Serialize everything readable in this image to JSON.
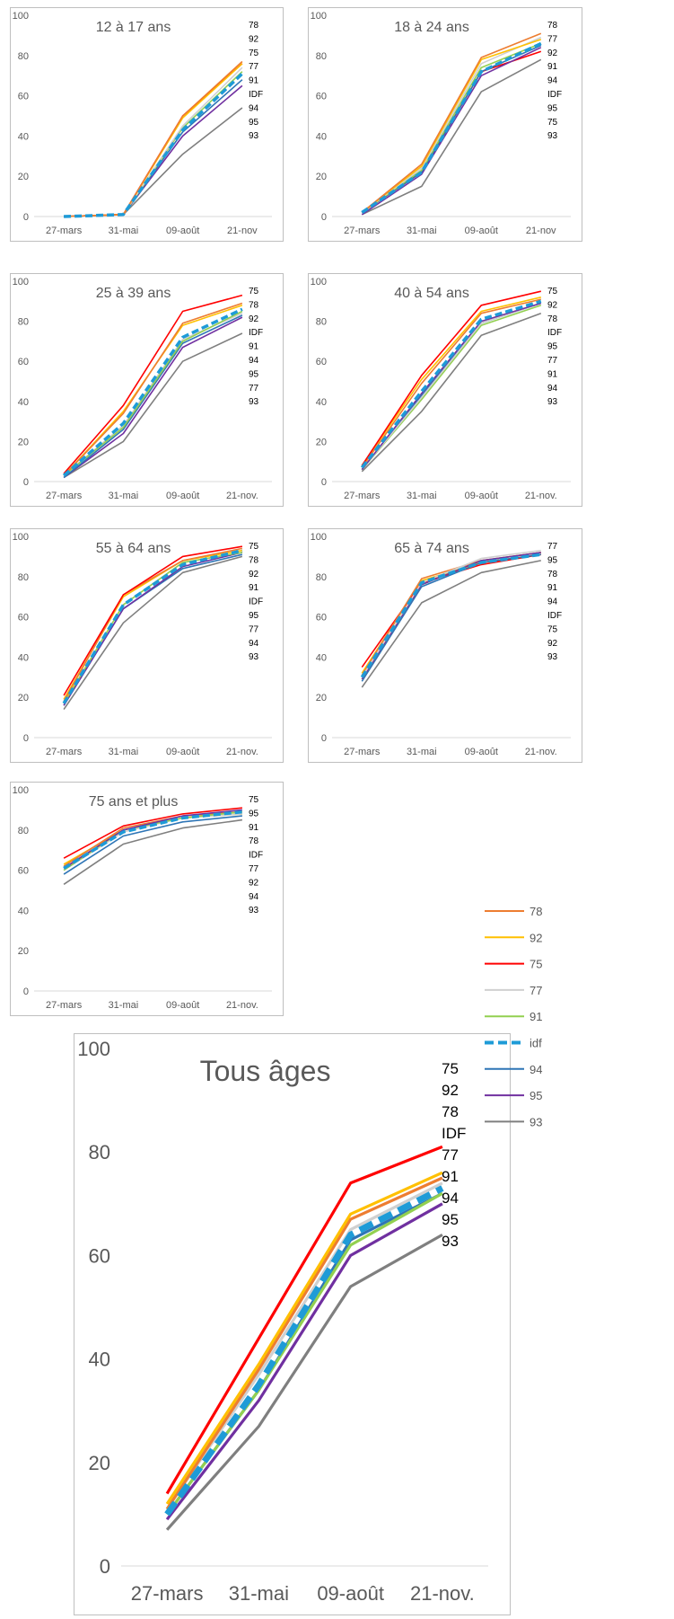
{
  "colors": {
    "78": "#ED7D31",
    "92": "#FFC000",
    "75": "#FF0000",
    "77": "#D0D0D0",
    "91": "#92D050",
    "idf": "#1E9BD7",
    "94": "#2E75B6",
    "95": "#7030A0",
    "93": "#7F7F7F"
  },
  "legend": {
    "items": [
      {
        "key": "78",
        "label": "78"
      },
      {
        "key": "92",
        "label": "92"
      },
      {
        "key": "75",
        "label": "75"
      },
      {
        "key": "77",
        "label": "77"
      },
      {
        "key": "91",
        "label": "91"
      },
      {
        "key": "idf",
        "label": "idf"
      },
      {
        "key": "94",
        "label": "94"
      },
      {
        "key": "95",
        "label": "95"
      },
      {
        "key": "93",
        "label": "93"
      }
    ]
  },
  "chart_data": [
    {
      "type": "line",
      "title": "12 à 17 ans",
      "categories": [
        "27-mars",
        "31-mai",
        "09-août",
        "21-nov"
      ],
      "ylim": [
        0,
        100
      ],
      "yticks": [
        0,
        20,
        40,
        60,
        80,
        100
      ],
      "grid": false,
      "order_labels": [
        "78",
        "92",
        "75",
        "77",
        "91",
        "IDF",
        "94",
        "95",
        "93"
      ],
      "series": [
        {
          "key": "78",
          "values": [
            0,
            1,
            50,
            77
          ]
        },
        {
          "key": "92",
          "values": [
            0,
            1,
            49,
            76
          ]
        },
        {
          "key": "75",
          "values": [
            0,
            1,
            50,
            76
          ]
        },
        {
          "key": "77",
          "values": [
            0,
            1,
            45,
            74
          ]
        },
        {
          "key": "91",
          "values": [
            0,
            1,
            44,
            72
          ]
        },
        {
          "key": "idf",
          "values": [
            0,
            1,
            43,
            71
          ]
        },
        {
          "key": "94",
          "values": [
            0,
            1,
            42,
            68
          ]
        },
        {
          "key": "95",
          "values": [
            0,
            1,
            40,
            65
          ]
        },
        {
          "key": "93",
          "values": [
            0,
            1,
            31,
            54
          ]
        }
      ]
    },
    {
      "type": "line",
      "title": "18 à 24 ans",
      "categories": [
        "27-mars",
        "31-mai",
        "09-août",
        "21-nov"
      ],
      "ylim": [
        0,
        100
      ],
      "yticks": [
        0,
        20,
        40,
        60,
        80,
        100
      ],
      "grid": false,
      "order_labels": [
        "78",
        "77",
        "92",
        "91",
        "94",
        "IDF",
        "95",
        "75",
        "93"
      ],
      "series": [
        {
          "key": "78",
          "values": [
            2,
            26,
            79,
            91
          ]
        },
        {
          "key": "92",
          "values": [
            2,
            25,
            78,
            88
          ]
        },
        {
          "key": "77",
          "values": [
            2,
            24,
            76,
            89
          ]
        },
        {
          "key": "91",
          "values": [
            2,
            23,
            74,
            86
          ]
        },
        {
          "key": "94",
          "values": [
            2,
            22,
            72,
            85
          ]
        },
        {
          "key": "idf",
          "values": [
            2,
            22,
            72,
            86
          ]
        },
        {
          "key": "95",
          "values": [
            1,
            21,
            70,
            84
          ]
        },
        {
          "key": "75",
          "values": [
            2,
            22,
            72,
            82
          ]
        },
        {
          "key": "93",
          "values": [
            1,
            15,
            62,
            78
          ]
        }
      ]
    },
    {
      "type": "line",
      "title": "25 à 39 ans",
      "categories": [
        "27-mars",
        "31-mai",
        "09-août",
        "21-nov."
      ],
      "ylim": [
        0,
        100
      ],
      "yticks": [
        0,
        20,
        40,
        60,
        80,
        100
      ],
      "grid": false,
      "order_labels": [
        "75",
        "78",
        "92",
        "IDF",
        "91",
        "94",
        "95",
        "77",
        "93"
      ],
      "series": [
        {
          "key": "75",
          "values": [
            4,
            38,
            85,
            93
          ]
        },
        {
          "key": "78",
          "values": [
            3,
            34,
            79,
            89
          ]
        },
        {
          "key": "92",
          "values": [
            3,
            35,
            78,
            88
          ]
        },
        {
          "key": "idf",
          "values": [
            3,
            29,
            72,
            86
          ]
        },
        {
          "key": "91",
          "values": [
            3,
            27,
            70,
            85
          ]
        },
        {
          "key": "94",
          "values": [
            2,
            26,
            69,
            83
          ]
        },
        {
          "key": "95",
          "values": [
            2,
            24,
            67,
            82
          ]
        },
        {
          "key": "77",
          "values": [
            3,
            28,
            71,
            84
          ]
        },
        {
          "key": "93",
          "values": [
            2,
            20,
            60,
            74
          ]
        }
      ]
    },
    {
      "type": "line",
      "title": "40 à 54 ans",
      "categories": [
        "27-mars",
        "31-mai",
        "09-août",
        "21-nov."
      ],
      "ylim": [
        0,
        100
      ],
      "yticks": [
        0,
        20,
        40,
        60,
        80,
        100
      ],
      "grid": false,
      "order_labels": [
        "75",
        "92",
        "78",
        "IDF",
        "95",
        "77",
        "91",
        "94",
        "93"
      ],
      "series": [
        {
          "key": "75",
          "values": [
            8,
            53,
            88,
            95
          ]
        },
        {
          "key": "92",
          "values": [
            8,
            51,
            85,
            92
          ]
        },
        {
          "key": "78",
          "values": [
            7,
            49,
            84,
            91
          ]
        },
        {
          "key": "idf",
          "values": [
            7,
            45,
            81,
            90
          ]
        },
        {
          "key": "95",
          "values": [
            6,
            44,
            80,
            89
          ]
        },
        {
          "key": "77",
          "values": [
            6,
            42,
            79,
            89
          ]
        },
        {
          "key": "91",
          "values": [
            6,
            41,
            78,
            88
          ]
        },
        {
          "key": "94",
          "values": [
            6,
            43,
            79,
            89
          ]
        },
        {
          "key": "93",
          "values": [
            5,
            35,
            73,
            84
          ]
        }
      ]
    },
    {
      "type": "line",
      "title": "55 à 64 ans",
      "categories": [
        "27-mars",
        "31-mai",
        "09-août",
        "21-nov."
      ],
      "ylim": [
        0,
        100
      ],
      "yticks": [
        0,
        20,
        40,
        60,
        80,
        100
      ],
      "grid": false,
      "order_labels": [
        "75",
        "78",
        "92",
        "91",
        "IDF",
        "95",
        "77",
        "94",
        "93"
      ],
      "series": [
        {
          "key": "75",
          "values": [
            21,
            71,
            90,
            95
          ]
        },
        {
          "key": "78",
          "values": [
            18,
            71,
            88,
            94
          ]
        },
        {
          "key": "92",
          "values": [
            19,
            70,
            88,
            93
          ]
        },
        {
          "key": "91",
          "values": [
            17,
            66,
            87,
            92
          ]
        },
        {
          "key": "idf",
          "values": [
            17,
            66,
            86,
            93
          ]
        },
        {
          "key": "95",
          "values": [
            16,
            64,
            85,
            92
          ]
        },
        {
          "key": "77",
          "values": [
            17,
            66,
            87,
            92
          ]
        },
        {
          "key": "94",
          "values": [
            16,
            64,
            84,
            91
          ]
        },
        {
          "key": "93",
          "values": [
            14,
            57,
            82,
            90
          ]
        }
      ]
    },
    {
      "type": "line",
      "title": "65 à 74 ans",
      "categories": [
        "27-mars",
        "31-mai",
        "09-août",
        "21-nov."
      ],
      "ylim": [
        0,
        100
      ],
      "yticks": [
        0,
        20,
        40,
        60,
        80,
        100
      ],
      "grid": false,
      "order_labels": [
        "77",
        "95",
        "78",
        "91",
        "94",
        "IDF",
        "75",
        "92",
        "93"
      ],
      "series": [
        {
          "key": "77",
          "values": [
            30,
            77,
            89,
            93
          ]
        },
        {
          "key": "95",
          "values": [
            29,
            76,
            88,
            92
          ]
        },
        {
          "key": "78",
          "values": [
            31,
            79,
            88,
            92
          ]
        },
        {
          "key": "91",
          "values": [
            29,
            76,
            88,
            92
          ]
        },
        {
          "key": "94",
          "values": [
            28,
            75,
            87,
            91
          ]
        },
        {
          "key": "idf",
          "values": [
            30,
            77,
            87,
            91
          ]
        },
        {
          "key": "75",
          "values": [
            35,
            77,
            86,
            91
          ]
        },
        {
          "key": "92",
          "values": [
            32,
            78,
            87,
            91
          ]
        },
        {
          "key": "93",
          "values": [
            25,
            67,
            82,
            88
          ]
        }
      ]
    },
    {
      "type": "line",
      "title": "75 ans et plus",
      "categories": [
        "27-mars",
        "31-mai",
        "09-août",
        "21-nov."
      ],
      "ylim": [
        0,
        100
      ],
      "yticks": [
        0,
        20,
        40,
        60,
        80,
        100
      ],
      "grid": false,
      "order_labels": [
        "75",
        "95",
        "91",
        "78",
        "IDF",
        "77",
        "92",
        "94",
        "93"
      ],
      "series": [
        {
          "key": "75",
          "values": [
            66,
            82,
            88,
            91
          ]
        },
        {
          "key": "95",
          "values": [
            61,
            80,
            87,
            90
          ]
        },
        {
          "key": "91",
          "values": [
            60,
            80,
            86,
            89
          ]
        },
        {
          "key": "78",
          "values": [
            62,
            81,
            87,
            89
          ]
        },
        {
          "key": "idf",
          "values": [
            61,
            79,
            86,
            89
          ]
        },
        {
          "key": "77",
          "values": [
            60,
            79,
            86,
            88
          ]
        },
        {
          "key": "92",
          "values": [
            63,
            80,
            86,
            88
          ]
        },
        {
          "key": "94",
          "values": [
            58,
            77,
            84,
            87
          ]
        },
        {
          "key": "93",
          "values": [
            53,
            73,
            81,
            85
          ]
        }
      ]
    },
    {
      "type": "line",
      "title": "Tous âges",
      "categories": [
        "27-mars",
        "31-mai",
        "09-août",
        "21-nov."
      ],
      "ylim": [
        0,
        100
      ],
      "yticks": [
        0,
        20,
        40,
        60,
        80,
        100
      ],
      "grid": false,
      "order_labels": [
        "75",
        "92",
        "78",
        "IDF",
        "77",
        "91",
        "94",
        "95",
        "93"
      ],
      "series": [
        {
          "key": "75",
          "values": [
            14,
            44,
            74,
            81
          ]
        },
        {
          "key": "92",
          "values": [
            12,
            39,
            68,
            76
          ]
        },
        {
          "key": "78",
          "values": [
            11,
            38,
            67,
            75
          ]
        },
        {
          "key": "idf",
          "values": [
            10,
            35,
            64,
            73
          ]
        },
        {
          "key": "77",
          "values": [
            11,
            37,
            65,
            74
          ]
        },
        {
          "key": "91",
          "values": [
            10,
            34,
            62,
            72
          ]
        },
        {
          "key": "94",
          "values": [
            10,
            34,
            63,
            72
          ]
        },
        {
          "key": "95",
          "values": [
            9,
            32,
            60,
            70
          ]
        },
        {
          "key": "93",
          "values": [
            7,
            27,
            54,
            64
          ]
        }
      ]
    }
  ]
}
